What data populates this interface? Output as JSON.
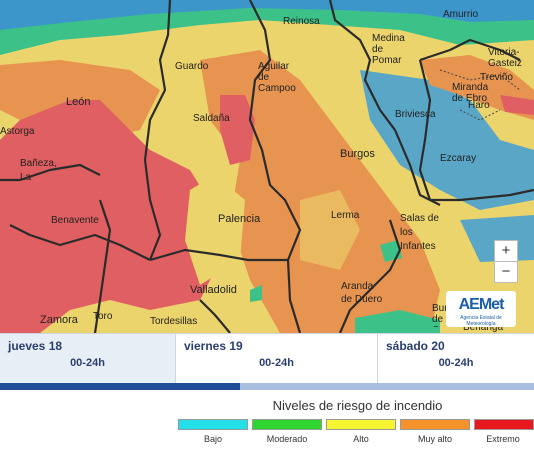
{
  "map": {
    "cities": [
      {
        "key": "reinosa",
        "label": "Reinosa"
      },
      {
        "key": "amurrio",
        "label": "Amurrio"
      },
      {
        "key": "medina",
        "label": "Medina de Pomar"
      },
      {
        "key": "vitoria",
        "label": "Vitoria-Gasteiz"
      },
      {
        "key": "trevino",
        "label": "Treviño"
      },
      {
        "key": "guardo",
        "label": "Guardo"
      },
      {
        "key": "aguilar",
        "label": "Aguilar de Campoo"
      },
      {
        "key": "miranda",
        "label": "Miranda de Ebro"
      },
      {
        "key": "haro",
        "label": "Haro"
      },
      {
        "key": "leon",
        "label": "León"
      },
      {
        "key": "saldana",
        "label": "Saldaña"
      },
      {
        "key": "briviesca",
        "label": "Briviesca"
      },
      {
        "key": "astorga",
        "label": "Astorga"
      },
      {
        "key": "baneza",
        "label": "Bañeza, La"
      },
      {
        "key": "burgos",
        "label": "Burgos"
      },
      {
        "key": "ezcaray",
        "label": "Ezcaray"
      },
      {
        "key": "benavente",
        "label": "Benavente"
      },
      {
        "key": "palencia",
        "label": "Palencia"
      },
      {
        "key": "lerma",
        "label": "Lerma"
      },
      {
        "key": "salas",
        "label": "Salas de los Infantes"
      },
      {
        "key": "valladolid",
        "label": "Valladolid"
      },
      {
        "key": "aranda",
        "label": "Aranda de Duero"
      },
      {
        "key": "zamora",
        "label": "Zamora"
      },
      {
        "key": "toro",
        "label": "Toro"
      },
      {
        "key": "tordesillas",
        "label": "Tordesillas"
      },
      {
        "key": "burgo",
        "label": "Burgo de Osma"
      },
      {
        "key": "berlanga",
        "label": "Berlanga"
      }
    ],
    "zoom_in": "+",
    "zoom_out": "−",
    "logo": {
      "mark": "AEMet",
      "sub": "Agencia Estatal de Meteorología"
    }
  },
  "days": [
    {
      "name": "jueves 18",
      "slot": "00-24h"
    },
    {
      "name": "viernes 19",
      "slot": "00-24h"
    },
    {
      "name": "sábado 20",
      "slot": "00-24h"
    }
  ],
  "timeline": {
    "progress": 0.45
  },
  "legend": {
    "title": "Niveles de riesgo de incendio",
    "levels": [
      {
        "label": "Bajo",
        "color": "#23e0e8"
      },
      {
        "label": "Moderado",
        "color": "#2ed52e"
      },
      {
        "label": "Alto",
        "color": "#f5f532"
      },
      {
        "label": "Muy alto",
        "color": "#f5922a"
      },
      {
        "label": "Extremo",
        "color": "#e8191e"
      }
    ]
  }
}
